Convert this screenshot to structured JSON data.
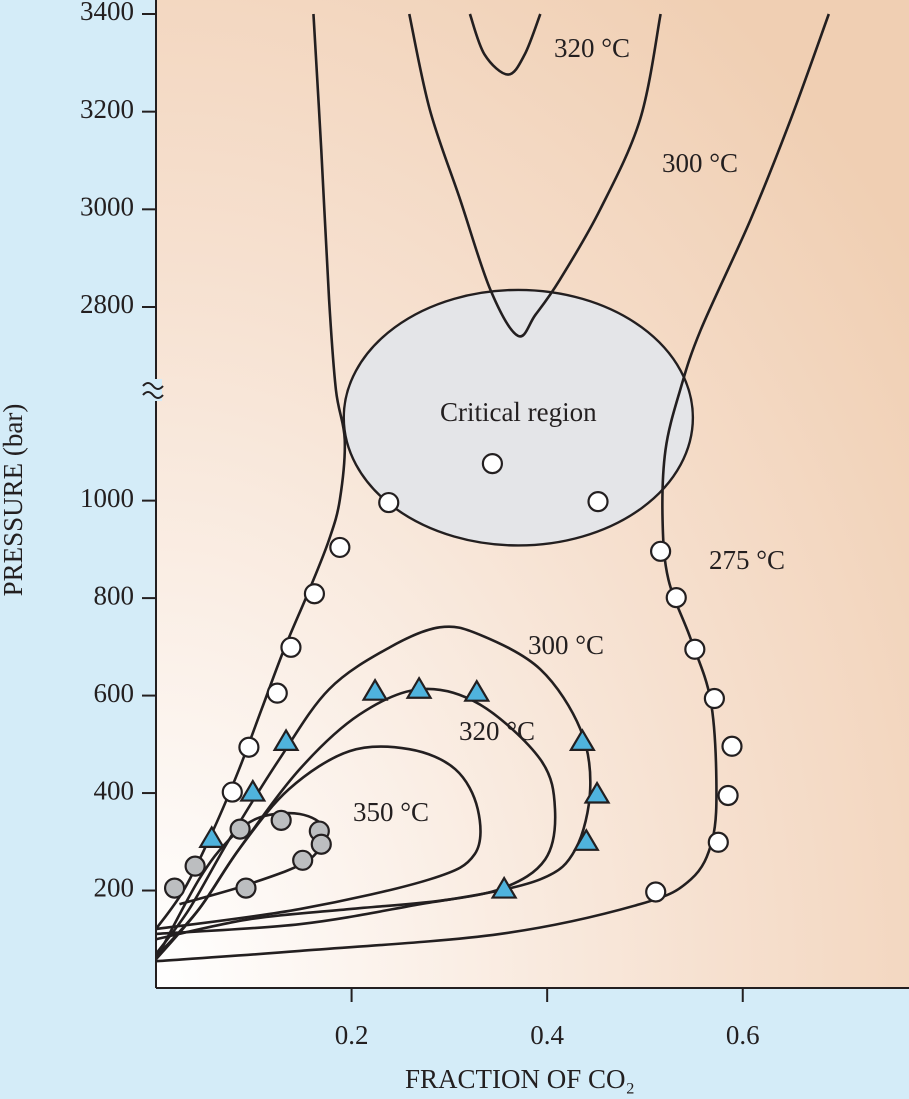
{
  "chart_data": {
    "type": "line",
    "xlabel": "FRACTION OF CO₂",
    "ylabel": "PRESSURE (bar)",
    "xlim": [
      0,
      0.77
    ],
    "xticks": [
      0.2,
      0.4,
      0.6
    ],
    "ylim": [
      0,
      3400
    ],
    "ybreak": [
      1227,
      2630
    ],
    "yticks": [
      200,
      400,
      600,
      800,
      1000,
      2800,
      3000,
      3200,
      3400
    ],
    "critical_region": {
      "label": "Critical region",
      "color": "#e4e5e8",
      "xlim": [
        0.192,
        0.549
      ],
      "ylim": [
        908,
        2835
      ]
    },
    "curves": [
      {
        "name": "275 °C",
        "x": [
          0.161,
          0.169,
          0.177,
          0.184,
          0.193,
          0.188,
          0.177,
          0.157,
          0.131,
          0.108,
          0.085,
          0.059,
          0.029,
          0
        ],
        "y": [
          3400,
          3122,
          2815,
          2630,
          1125,
          1002,
          920,
          818,
          695,
          572,
          449,
          326,
          203,
          121
        ]
      },
      {
        "x": [
          0.688,
          0.649,
          0.608,
          0.557,
          0.536,
          0.521,
          0.518,
          0.524,
          0.547,
          0.567,
          0.573,
          0.569,
          0.547,
          0.495,
          0.352,
          0.147,
          0
        ],
        "y": [
          3400,
          3184,
          2979,
          2753,
          2630,
          1104,
          961,
          838,
          715,
          592,
          428,
          305,
          223,
          172,
          111,
          76,
          55
        ]
      },
      {
        "name": "300 °C",
        "x": [
          0.259,
          0.28,
          0.311,
          0.342,
          0.37,
          0.388,
          0.413,
          0.454,
          0.495,
          0.516
        ],
        "y": [
          3400,
          3204,
          3020,
          2835,
          2741,
          2784,
          2856,
          2999,
          3184,
          3400
        ]
      },
      {
        "name": "320 °C",
        "x": [
          0.321,
          0.336,
          0.36,
          0.377,
          0.393
        ],
        "y": [
          3400,
          3317,
          3276,
          3317,
          3400
        ]
      },
      {
        "name": "300 °C",
        "x": [
          0,
          0.095,
          0.198,
          0.301,
          0.393,
          0.429,
          0.444,
          0.434,
          0.393,
          0.331,
          0.29,
          0.239,
          0.177,
          0.126,
          0.075,
          0.034,
          0
        ],
        "y": [
          100,
          141,
          162,
          182,
          223,
          285,
          408,
          531,
          654,
          725,
          740,
          699,
          613,
          469,
          305,
          162,
          70
        ]
      },
      {
        "name": "320 °C",
        "x": [
          0,
          0.147,
          0.27,
          0.352,
          0.398,
          0.408,
          0.393,
          0.331,
          0.27,
          0.208,
          0.147,
          0.085,
          0.044,
          0
        ],
        "y": [
          111,
          131,
          172,
          203,
          264,
          367,
          469,
          582,
          613,
          561,
          449,
          285,
          162,
          64
        ]
      },
      {
        "name": "350 °C",
        "x": [
          0,
          0.147,
          0.28,
          0.326,
          0.329,
          0.306,
          0.259,
          0.198,
          0.136,
          0.085,
          0.044,
          0
        ],
        "y": [
          121,
          162,
          223,
          275,
          367,
          449,
          490,
          486,
          408,
          285,
          162,
          59
        ]
      },
      {
        "x": [
          0.024,
          0.095,
          0.157,
          0.172,
          0.147,
          0.106,
          0.075,
          0.044,
          0.003
        ],
        "y": [
          172,
          213,
          264,
          326,
          357,
          350,
          305,
          223,
          70
        ]
      }
    ],
    "markers": [
      {
        "marker": "circle",
        "color": "#ffffff",
        "x": [
          0.344,
          0.238,
          0.452,
          0.188,
          0.162,
          0.138,
          0.124,
          0.095,
          0.078,
          0.516,
          0.532,
          0.551,
          0.571,
          0.589,
          0.585,
          0.575,
          0.511
        ],
        "y": [
          1076,
          996,
          998,
          904,
          809,
          699,
          605,
          494,
          402,
          896,
          801,
          695,
          594,
          496,
          395,
          299,
          197
        ]
      },
      {
        "marker": "circle",
        "color": "#bcbec0",
        "x": [
          0.019,
          0.04,
          0.086,
          0.128,
          0.167,
          0.169,
          0.15,
          0.092
        ],
        "y": [
          205,
          250,
          326,
          344,
          322,
          295,
          262,
          205
        ]
      },
      {
        "marker": "triangle",
        "color": "#4fb3dd",
        "x": [
          0.224,
          0.269,
          0.328,
          0.436,
          0.451,
          0.44,
          0.356,
          0.133,
          0.099,
          0.057
        ],
        "y": [
          609,
          613,
          607,
          506,
          398,
          301,
          203,
          506,
          402,
          307
        ]
      }
    ]
  }
}
